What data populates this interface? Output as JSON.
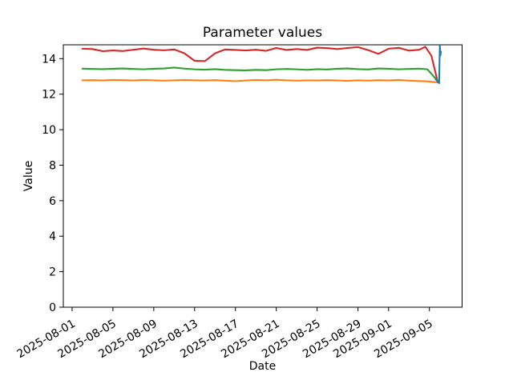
{
  "chart_data": {
    "type": "line",
    "title": "Parameter values",
    "xlabel": "Date",
    "ylabel": "Value",
    "legend": "none",
    "grid": false,
    "x_unit": "days since 2025-08-01",
    "xlim": [
      -0.86,
      38.2
    ],
    "ylim": [
      0,
      14.78
    ],
    "yticks": [
      0,
      2,
      4,
      6,
      8,
      10,
      12,
      14
    ],
    "xticks": [
      {
        "day": 0,
        "label": "2025-08-01"
      },
      {
        "day": 4,
        "label": "2025-08-05"
      },
      {
        "day": 8,
        "label": "2025-08-09"
      },
      {
        "day": 12,
        "label": "2025-08-13"
      },
      {
        "day": 16,
        "label": "2025-08-17"
      },
      {
        "day": 20,
        "label": "2025-08-21"
      },
      {
        "day": 24,
        "label": "2025-08-25"
      },
      {
        "day": 28,
        "label": "2025-08-29"
      },
      {
        "day": 31,
        "label": "2025-09-01"
      },
      {
        "day": 35,
        "label": "2025-09-05"
      }
    ],
    "x_tick_rotation_deg": 30,
    "series": [
      {
        "name": "series-red",
        "color": "#d62728",
        "points": [
          [
            1,
            14.56
          ],
          [
            2,
            14.54
          ],
          [
            3,
            14.42
          ],
          [
            4,
            14.46
          ],
          [
            5,
            14.43
          ],
          [
            6,
            14.5
          ],
          [
            7,
            14.57
          ],
          [
            8,
            14.5
          ],
          [
            9,
            14.47
          ],
          [
            10,
            14.52
          ],
          [
            11,
            14.3
          ],
          [
            12,
            13.88
          ],
          [
            13,
            13.86
          ],
          [
            14,
            14.3
          ],
          [
            15,
            14.52
          ],
          [
            16,
            14.49
          ],
          [
            17,
            14.46
          ],
          [
            18,
            14.5
          ],
          [
            19,
            14.44
          ],
          [
            20,
            14.6
          ],
          [
            21,
            14.49
          ],
          [
            22,
            14.54
          ],
          [
            23,
            14.49
          ],
          [
            24,
            14.62
          ],
          [
            25,
            14.59
          ],
          [
            26,
            14.54
          ],
          [
            27,
            14.6
          ],
          [
            28,
            14.65
          ],
          [
            29,
            14.48
          ],
          [
            30,
            14.27
          ],
          [
            31,
            14.56
          ],
          [
            32,
            14.61
          ],
          [
            33,
            14.45
          ],
          [
            34,
            14.5
          ],
          [
            34.6,
            14.67
          ],
          [
            35.2,
            14.15
          ],
          [
            35.8,
            12.72
          ]
        ]
      },
      {
        "name": "series-green",
        "color": "#2ca02c",
        "points": [
          [
            1,
            13.44
          ],
          [
            2,
            13.42
          ],
          [
            3,
            13.41
          ],
          [
            4,
            13.43
          ],
          [
            5,
            13.45
          ],
          [
            6,
            13.42
          ],
          [
            7,
            13.4
          ],
          [
            8,
            13.43
          ],
          [
            9,
            13.45
          ],
          [
            10,
            13.5
          ],
          [
            11,
            13.44
          ],
          [
            12,
            13.4
          ],
          [
            13,
            13.38
          ],
          [
            14,
            13.41
          ],
          [
            15,
            13.37
          ],
          [
            16,
            13.35
          ],
          [
            17,
            13.34
          ],
          [
            18,
            13.37
          ],
          [
            19,
            13.35
          ],
          [
            20,
            13.4
          ],
          [
            21,
            13.42
          ],
          [
            22,
            13.4
          ],
          [
            23,
            13.37
          ],
          [
            24,
            13.41
          ],
          [
            25,
            13.39
          ],
          [
            26,
            13.43
          ],
          [
            27,
            13.45
          ],
          [
            28,
            13.41
          ],
          [
            29,
            13.39
          ],
          [
            30,
            13.45
          ],
          [
            31,
            13.43
          ],
          [
            32,
            13.4
          ],
          [
            33,
            13.42
          ],
          [
            34,
            13.44
          ],
          [
            34.8,
            13.4
          ],
          [
            35.8,
            12.75
          ]
        ]
      },
      {
        "name": "series-orange",
        "color": "#ff7f0e",
        "points": [
          [
            1,
            12.78
          ],
          [
            2,
            12.79
          ],
          [
            3,
            12.77
          ],
          [
            4,
            12.8
          ],
          [
            5,
            12.79
          ],
          [
            6,
            12.77
          ],
          [
            7,
            12.8
          ],
          [
            8,
            12.78
          ],
          [
            9,
            12.76
          ],
          [
            10,
            12.78
          ],
          [
            11,
            12.8
          ],
          [
            12,
            12.78
          ],
          [
            13,
            12.77
          ],
          [
            14,
            12.79
          ],
          [
            15,
            12.76
          ],
          [
            16,
            12.73
          ],
          [
            17,
            12.77
          ],
          [
            18,
            12.8
          ],
          [
            19,
            12.78
          ],
          [
            20,
            12.81
          ],
          [
            21,
            12.78
          ],
          [
            22,
            12.76
          ],
          [
            23,
            12.78
          ],
          [
            24,
            12.77
          ],
          [
            25,
            12.79
          ],
          [
            26,
            12.77
          ],
          [
            27,
            12.75
          ],
          [
            28,
            12.78
          ],
          [
            29,
            12.76
          ],
          [
            30,
            12.79
          ],
          [
            31,
            12.77
          ],
          [
            32,
            12.8
          ],
          [
            33,
            12.76
          ],
          [
            34,
            12.74
          ],
          [
            34.8,
            12.72
          ],
          [
            35.8,
            12.66
          ]
        ]
      },
      {
        "name": "series-blue",
        "color": "#1f77b4",
        "points": [
          [
            35.6,
            12.85
          ],
          [
            35.95,
            12.62
          ],
          [
            36.02,
            14.73
          ],
          [
            36.08,
            14.18
          ],
          [
            36.12,
            14.4
          ]
        ]
      }
    ]
  }
}
